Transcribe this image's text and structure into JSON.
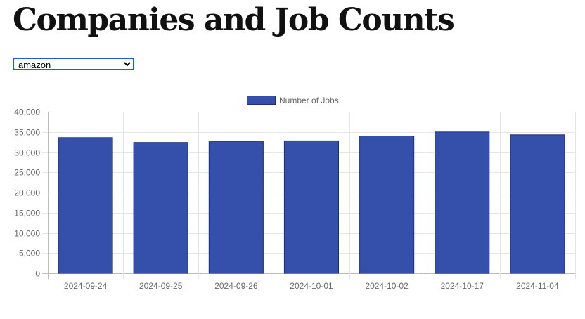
{
  "page": {
    "title": "Companies and Job Counts"
  },
  "selector": {
    "selected": "amazon",
    "options": [
      "amazon"
    ]
  },
  "colors": {
    "bar_fill": "#3550AA",
    "bar_border": "#1a2f7a",
    "grid": "#e6e6e6",
    "axis_text": "#666666"
  },
  "chart_data": {
    "type": "bar",
    "title": "",
    "xlabel": "",
    "ylabel": "",
    "categories": [
      "2024-09-24",
      "2024-09-25",
      "2024-09-26",
      "2024-10-01",
      "2024-10-02",
      "2024-10-17",
      "2024-11-04"
    ],
    "series": [
      {
        "name": "Number of Jobs",
        "values": [
          33600,
          32400,
          32700,
          32800,
          34000,
          35000,
          34300
        ]
      }
    ],
    "ylim": [
      0,
      40000
    ],
    "yticks": [
      0,
      5000,
      10000,
      15000,
      20000,
      25000,
      30000,
      35000,
      40000
    ],
    "ytick_labels": [
      "0",
      "5,000",
      "10,000",
      "15,000",
      "20,000",
      "25,000",
      "30,000",
      "35,000",
      "40,000"
    ],
    "grid": true,
    "legend": "top-center"
  }
}
